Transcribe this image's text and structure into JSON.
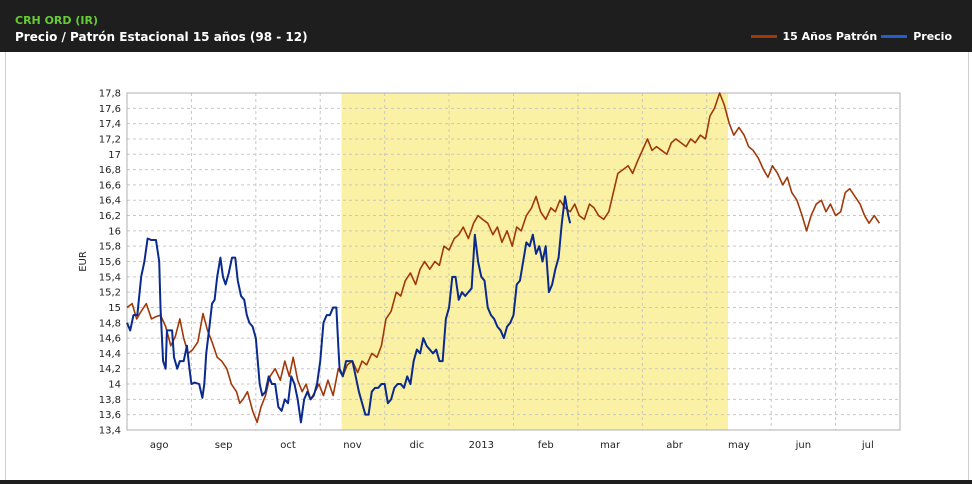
{
  "header": {
    "ticker": "CRH ORD (IR)",
    "subtitle": "Precio / Patrón Estacional 15 años (98 - 12)"
  },
  "legend": [
    {
      "label": "15 Años Patrón",
      "color": "#a0390a"
    },
    {
      "label": "Precio",
      "color": "#1f5fcf"
    }
  ],
  "chart_data": {
    "type": "line",
    "xlabel": "",
    "ylabel": "EUR",
    "ylim": [
      13.4,
      17.8
    ],
    "ytick_step": 0.2,
    "y_tick_labels": [
      "13,4",
      "13,6",
      "13,8",
      "14",
      "14,2",
      "14,4",
      "14,6",
      "14,8",
      "15",
      "15,2",
      "15,4",
      "15,6",
      "15,8",
      "16",
      "16,2",
      "16,4",
      "16,6",
      "16,8",
      "17",
      "17,2",
      "17,4",
      "17,6",
      "17,8"
    ],
    "x_tick_labels": [
      "ago",
      "sep",
      "oct",
      "nov",
      "dic",
      "2013",
      "feb",
      "mar",
      "abr",
      "may",
      "jun",
      "jul"
    ],
    "x_domain": [
      0,
      12.0
    ],
    "highlight_range": [
      3.33,
      9.33
    ],
    "highlight_color": "#fbf1a4",
    "grid": true,
    "series": [
      {
        "name": "15 Años Patrón",
        "color": "#a0390a",
        "points": [
          [
            0.0,
            15.0
          ],
          [
            0.08,
            15.05
          ],
          [
            0.15,
            14.85
          ],
          [
            0.22,
            14.95
          ],
          [
            0.3,
            15.05
          ],
          [
            0.38,
            14.85
          ],
          [
            0.45,
            14.88
          ],
          [
            0.52,
            14.9
          ],
          [
            0.6,
            14.75
          ],
          [
            0.68,
            14.5
          ],
          [
            0.75,
            14.62
          ],
          [
            0.82,
            14.85
          ],
          [
            0.88,
            14.6
          ],
          [
            0.95,
            14.4
          ],
          [
            1.02,
            14.45
          ],
          [
            1.1,
            14.55
          ],
          [
            1.18,
            14.92
          ],
          [
            1.25,
            14.7
          ],
          [
            1.32,
            14.55
          ],
          [
            1.4,
            14.35
          ],
          [
            1.47,
            14.3
          ],
          [
            1.55,
            14.2
          ],
          [
            1.62,
            14.0
          ],
          [
            1.7,
            13.9
          ],
          [
            1.75,
            13.75
          ],
          [
            1.8,
            13.8
          ],
          [
            1.87,
            13.9
          ],
          [
            1.95,
            13.65
          ],
          [
            2.02,
            13.5
          ],
          [
            2.08,
            13.7
          ],
          [
            2.15,
            13.85
          ],
          [
            2.22,
            14.1
          ],
          [
            2.3,
            14.2
          ],
          [
            2.38,
            14.05
          ],
          [
            2.45,
            14.3
          ],
          [
            2.52,
            14.1
          ],
          [
            2.58,
            14.35
          ],
          [
            2.65,
            14.05
          ],
          [
            2.72,
            13.9
          ],
          [
            2.78,
            14.0
          ],
          [
            2.85,
            13.8
          ],
          [
            2.92,
            13.9
          ],
          [
            2.98,
            14.0
          ],
          [
            3.05,
            13.85
          ],
          [
            3.12,
            14.05
          ],
          [
            3.2,
            13.85
          ],
          [
            3.28,
            14.2
          ],
          [
            3.35,
            14.1
          ],
          [
            3.42,
            14.25
          ],
          [
            3.5,
            14.3
          ],
          [
            3.58,
            14.15
          ],
          [
            3.65,
            14.3
          ],
          [
            3.72,
            14.25
          ],
          [
            3.8,
            14.4
          ],
          [
            3.88,
            14.35
          ],
          [
            3.95,
            14.5
          ],
          [
            4.02,
            14.85
          ],
          [
            4.1,
            14.95
          ],
          [
            4.18,
            15.2
          ],
          [
            4.25,
            15.15
          ],
          [
            4.32,
            15.35
          ],
          [
            4.4,
            15.45
          ],
          [
            4.48,
            15.3
          ],
          [
            4.55,
            15.5
          ],
          [
            4.62,
            15.6
          ],
          [
            4.7,
            15.5
          ],
          [
            4.78,
            15.6
          ],
          [
            4.85,
            15.55
          ],
          [
            4.92,
            15.8
          ],
          [
            5.0,
            15.75
          ],
          [
            5.08,
            15.9
          ],
          [
            5.15,
            15.95
          ],
          [
            5.22,
            16.05
          ],
          [
            5.3,
            15.9
          ],
          [
            5.38,
            16.1
          ],
          [
            5.45,
            16.2
          ],
          [
            5.52,
            16.15
          ],
          [
            5.6,
            16.1
          ],
          [
            5.68,
            15.95
          ],
          [
            5.75,
            16.05
          ],
          [
            5.82,
            15.85
          ],
          [
            5.9,
            16.0
          ],
          [
            5.98,
            15.8
          ],
          [
            6.05,
            16.05
          ],
          [
            6.12,
            16.0
          ],
          [
            6.2,
            16.2
          ],
          [
            6.28,
            16.3
          ],
          [
            6.35,
            16.45
          ],
          [
            6.42,
            16.25
          ],
          [
            6.5,
            16.15
          ],
          [
            6.58,
            16.3
          ],
          [
            6.65,
            16.25
          ],
          [
            6.72,
            16.4
          ],
          [
            6.8,
            16.3
          ],
          [
            6.88,
            16.25
          ],
          [
            6.95,
            16.35
          ],
          [
            7.02,
            16.2
          ],
          [
            7.1,
            16.15
          ],
          [
            7.18,
            16.35
          ],
          [
            7.25,
            16.3
          ],
          [
            7.32,
            16.2
          ],
          [
            7.4,
            16.15
          ],
          [
            7.48,
            16.25
          ],
          [
            7.55,
            16.5
          ],
          [
            7.62,
            16.75
          ],
          [
            7.7,
            16.8
          ],
          [
            7.78,
            16.85
          ],
          [
            7.85,
            16.75
          ],
          [
            7.92,
            16.9
          ],
          [
            8.0,
            17.05
          ],
          [
            8.08,
            17.2
          ],
          [
            8.15,
            17.05
          ],
          [
            8.22,
            17.1
          ],
          [
            8.3,
            17.05
          ],
          [
            8.38,
            17.0
          ],
          [
            8.45,
            17.15
          ],
          [
            8.52,
            17.2
          ],
          [
            8.6,
            17.15
          ],
          [
            8.68,
            17.1
          ],
          [
            8.75,
            17.2
          ],
          [
            8.82,
            17.15
          ],
          [
            8.9,
            17.25
          ],
          [
            8.98,
            17.2
          ],
          [
            9.05,
            17.5
          ],
          [
            9.12,
            17.6
          ],
          [
            9.2,
            17.8
          ],
          [
            9.27,
            17.65
          ],
          [
            9.35,
            17.4
          ],
          [
            9.42,
            17.25
          ],
          [
            9.5,
            17.35
          ],
          [
            9.58,
            17.25
          ],
          [
            9.65,
            17.1
          ],
          [
            9.72,
            17.05
          ],
          [
            9.8,
            16.95
          ],
          [
            9.88,
            16.8
          ],
          [
            9.95,
            16.7
          ],
          [
            10.02,
            16.85
          ],
          [
            10.1,
            16.75
          ],
          [
            10.18,
            16.6
          ],
          [
            10.25,
            16.7
          ],
          [
            10.32,
            16.5
          ],
          [
            10.4,
            16.4
          ],
          [
            10.48,
            16.2
          ],
          [
            10.55,
            16.0
          ],
          [
            10.62,
            16.2
          ],
          [
            10.7,
            16.35
          ],
          [
            10.78,
            16.4
          ],
          [
            10.85,
            16.25
          ],
          [
            10.92,
            16.35
          ],
          [
            11.0,
            16.2
          ],
          [
            11.08,
            16.25
          ],
          [
            11.15,
            16.5
          ],
          [
            11.22,
            16.55
          ],
          [
            11.3,
            16.45
          ],
          [
            11.38,
            16.35
          ],
          [
            11.45,
            16.2
          ],
          [
            11.52,
            16.1
          ],
          [
            11.6,
            16.2
          ],
          [
            11.68,
            16.1
          ]
        ]
      },
      {
        "name": "Precio",
        "color": "#0a2a8c",
        "points": [
          [
            0.0,
            14.8
          ],
          [
            0.05,
            14.7
          ],
          [
            0.1,
            14.9
          ],
          [
            0.16,
            14.9
          ],
          [
            0.22,
            15.4
          ],
          [
            0.27,
            15.6
          ],
          [
            0.32,
            15.9
          ],
          [
            0.38,
            15.88
          ],
          [
            0.45,
            15.88
          ],
          [
            0.5,
            15.6
          ],
          [
            0.52,
            15.0
          ],
          [
            0.56,
            14.3
          ],
          [
            0.6,
            14.2
          ],
          [
            0.62,
            14.7
          ],
          [
            0.67,
            14.7
          ],
          [
            0.7,
            14.7
          ],
          [
            0.73,
            14.35
          ],
          [
            0.78,
            14.2
          ],
          [
            0.82,
            14.3
          ],
          [
            0.88,
            14.3
          ],
          [
            0.93,
            14.5
          ],
          [
            0.97,
            14.2
          ],
          [
            1.0,
            14.0
          ],
          [
            1.05,
            14.02
          ],
          [
            1.12,
            14.0
          ],
          [
            1.17,
            13.82
          ],
          [
            1.2,
            14.0
          ],
          [
            1.23,
            14.4
          ],
          [
            1.28,
            14.75
          ],
          [
            1.32,
            15.05
          ],
          [
            1.36,
            15.1
          ],
          [
            1.4,
            15.4
          ],
          [
            1.45,
            15.65
          ],
          [
            1.49,
            15.4
          ],
          [
            1.53,
            15.3
          ],
          [
            1.58,
            15.45
          ],
          [
            1.63,
            15.65
          ],
          [
            1.68,
            15.65
          ],
          [
            1.72,
            15.35
          ],
          [
            1.77,
            15.15
          ],
          [
            1.82,
            15.1
          ],
          [
            1.86,
            14.9
          ],
          [
            1.9,
            14.8
          ],
          [
            1.95,
            14.75
          ],
          [
            2.0,
            14.6
          ],
          [
            2.03,
            14.3
          ],
          [
            2.06,
            14.0
          ],
          [
            2.1,
            13.85
          ],
          [
            2.15,
            13.9
          ],
          [
            2.2,
            14.1
          ],
          [
            2.25,
            14.0
          ],
          [
            2.3,
            14.0
          ],
          [
            2.35,
            13.7
          ],
          [
            2.4,
            13.65
          ],
          [
            2.45,
            13.8
          ],
          [
            2.5,
            13.75
          ],
          [
            2.55,
            14.1
          ],
          [
            2.6,
            14.0
          ],
          [
            2.65,
            13.8
          ],
          [
            2.7,
            13.5
          ],
          [
            2.75,
            13.8
          ],
          [
            2.8,
            13.9
          ],
          [
            2.85,
            13.8
          ],
          [
            2.9,
            13.85
          ],
          [
            2.95,
            14.0
          ],
          [
            3.0,
            14.3
          ],
          [
            3.05,
            14.8
          ],
          [
            3.1,
            14.9
          ],
          [
            3.15,
            14.9
          ],
          [
            3.2,
            15.0
          ],
          [
            3.25,
            15.0
          ],
          [
            3.28,
            14.5
          ],
          [
            3.3,
            14.2
          ],
          [
            3.35,
            14.1
          ],
          [
            3.4,
            14.3
          ],
          [
            3.45,
            14.3
          ],
          [
            3.5,
            14.3
          ],
          [
            3.55,
            14.1
          ],
          [
            3.6,
            13.9
          ],
          [
            3.65,
            13.75
          ],
          [
            3.7,
            13.6
          ],
          [
            3.75,
            13.6
          ],
          [
            3.8,
            13.9
          ],
          [
            3.85,
            13.95
          ],
          [
            3.9,
            13.95
          ],
          [
            3.95,
            14.0
          ],
          [
            4.0,
            14.0
          ],
          [
            4.05,
            13.75
          ],
          [
            4.1,
            13.8
          ],
          [
            4.15,
            13.95
          ],
          [
            4.2,
            14.0
          ],
          [
            4.25,
            14.0
          ],
          [
            4.3,
            13.95
          ],
          [
            4.35,
            14.1
          ],
          [
            4.4,
            14.0
          ],
          [
            4.45,
            14.3
          ],
          [
            4.5,
            14.45
          ],
          [
            4.55,
            14.4
          ],
          [
            4.6,
            14.6
          ],
          [
            4.65,
            14.5
          ],
          [
            4.7,
            14.45
          ],
          [
            4.75,
            14.4
          ],
          [
            4.8,
            14.45
          ],
          [
            4.85,
            14.3
          ],
          [
            4.9,
            14.3
          ],
          [
            4.95,
            14.85
          ],
          [
            5.0,
            15.0
          ],
          [
            5.05,
            15.4
          ],
          [
            5.1,
            15.4
          ],
          [
            5.15,
            15.1
          ],
          [
            5.2,
            15.2
          ],
          [
            5.25,
            15.15
          ],
          [
            5.3,
            15.2
          ],
          [
            5.35,
            15.25
          ],
          [
            5.4,
            15.95
          ],
          [
            5.45,
            15.6
          ],
          [
            5.5,
            15.4
          ],
          [
            5.55,
            15.35
          ],
          [
            5.6,
            15.0
          ],
          [
            5.65,
            14.9
          ],
          [
            5.7,
            14.85
          ],
          [
            5.75,
            14.75
          ],
          [
            5.8,
            14.7
          ],
          [
            5.85,
            14.6
          ],
          [
            5.9,
            14.75
          ],
          [
            5.95,
            14.8
          ],
          [
            6.0,
            14.9
          ],
          [
            6.05,
            15.3
          ],
          [
            6.1,
            15.35
          ],
          [
            6.15,
            15.6
          ],
          [
            6.2,
            15.85
          ],
          [
            6.25,
            15.8
          ],
          [
            6.3,
            15.95
          ],
          [
            6.35,
            15.7
          ],
          [
            6.4,
            15.8
          ],
          [
            6.45,
            15.6
          ],
          [
            6.5,
            15.8
          ],
          [
            6.55,
            15.2
          ],
          [
            6.6,
            15.3
          ],
          [
            6.65,
            15.5
          ],
          [
            6.7,
            15.65
          ],
          [
            6.75,
            16.1
          ],
          [
            6.8,
            16.45
          ],
          [
            6.85,
            16.2
          ],
          [
            6.88,
            16.1
          ]
        ]
      }
    ]
  }
}
